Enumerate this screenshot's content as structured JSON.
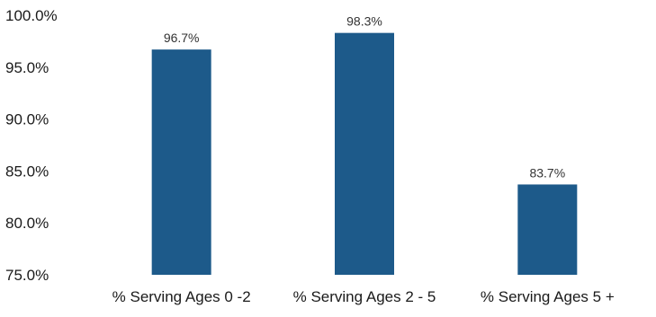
{
  "chart_data": {
    "type": "bar",
    "categories": [
      "% Serving Ages 0 -2",
      "% Serving Ages 2 - 5",
      "% Serving Ages 5 +"
    ],
    "values": [
      96.7,
      98.3,
      83.7
    ],
    "data_labels": [
      "96.7%",
      "98.3%",
      "83.7%"
    ],
    "y_ticks": [
      "100.0%",
      "95.0%",
      "90.0%",
      "85.0%",
      "80.0%",
      "75.0%"
    ],
    "y_tick_values": [
      100,
      95,
      90,
      85,
      80,
      75
    ],
    "ylim": [
      75,
      100
    ],
    "title": "",
    "xlabel": "",
    "ylabel": "",
    "grid": false,
    "legend": "none",
    "bar_color": "#1d5a8a"
  }
}
